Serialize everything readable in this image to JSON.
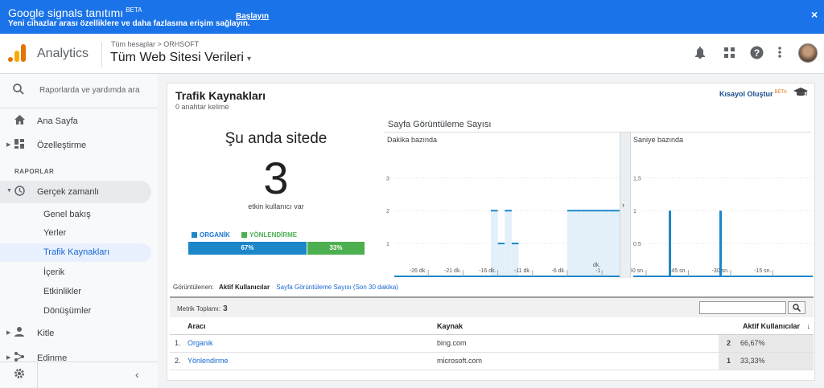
{
  "banner": {
    "title": "Google signals tanıtımı",
    "beta": "BETA",
    "subtitle": "Yeni cihazlar arası özelliklere ve daha fazlasına erişim sağlayın.",
    "link": "Başlayın",
    "close": "×"
  },
  "header": {
    "app": "Analytics",
    "breadcrumb": "Tüm hesaplar > ORHSOFT",
    "view": "Tüm Web Sitesi Verileri",
    "caret": "▾",
    "icons": [
      "bell-icon",
      "apps-grid-icon",
      "help-icon",
      "more-vert-icon",
      "avatar"
    ]
  },
  "sidebar": {
    "search": "Raporlarda ve yardımda ara",
    "top": [
      {
        "label": "Ana Sayfa",
        "icon": "home-icon"
      },
      {
        "label": "Özelleştirme",
        "icon": "dashboard-icon"
      }
    ],
    "section": "RAPORLAR",
    "realtime": "Gerçek zamanlı",
    "sub": [
      "Genel bakış",
      "Yerler",
      "Trafik Kaynakları",
      "İçerik",
      "Etkinlikler",
      "Dönüşümler"
    ],
    "more": [
      "Kitle",
      "Edinme"
    ]
  },
  "card": {
    "title": "Trafik Kaynakları",
    "subtitle": "0 anahtar kelime",
    "shortcut": "Kısayol Oluştur",
    "shortcut_beta": "BETA"
  },
  "now": {
    "title": "Şu anda sitede",
    "count": "3",
    "sub": "etkin kullanıcı var"
  },
  "split": {
    "items": [
      {
        "label": "ORGANİK",
        "color": "#1b87c9",
        "pct": "67%",
        "value": 0.67
      },
      {
        "label": "YÖNLENDİRME",
        "color": "#4caf50",
        "pct": "33%",
        "value": 0.33
      }
    ]
  },
  "pageviews": {
    "title": "Sayfa Görüntüleme Sayısı",
    "minute_label": "Dakika bazında",
    "second_label": "Saniye bazında"
  },
  "chart_data": [
    {
      "type": "bar",
      "title": "Dakika bazında",
      "ylim": [
        0,
        3.4
      ],
      "yticks": [
        "1",
        "2",
        "3"
      ],
      "xticks": [
        "-26 dk.",
        "-21 dk.",
        "-16 dk.",
        "-11 dk.",
        "-6 dk.",
        "-1 dk."
      ],
      "values": [
        2,
        1,
        2,
        1,
        2,
        2,
        2,
        2,
        2,
        2,
        2,
        2
      ],
      "minutes": [
        -17,
        -16,
        -15,
        -14,
        -6,
        -5,
        -4,
        -3,
        -2,
        -1,
        0,
        1
      ]
    },
    {
      "type": "bar",
      "title": "Saniye bazında",
      "ylim": [
        0,
        1.7
      ],
      "yticks": [
        "0.5",
        "1",
        "1,5"
      ],
      "xticks": [
        "-60 sn.",
        "-45 sn.",
        "-30 sn.",
        "-15 sn."
      ],
      "values": [
        1,
        1
      ],
      "seconds": [
        -52,
        -34
      ]
    }
  ],
  "tabs": {
    "label": "Görüntülenen:",
    "active": "Aktif Kullanıcılar",
    "other": "Sayfa Görüntüleme Sayısı (Son 30 dakika)"
  },
  "metric": {
    "label": "Metrik Toplamı:",
    "value": "3"
  },
  "table": {
    "columns": [
      "Aracı",
      "Kaynak",
      "Aktif Kullanıcılar"
    ],
    "rows": [
      {
        "idx": "1.",
        "medium": "Organik",
        "source": "bing.com",
        "users": "2",
        "pct": "66,67%"
      },
      {
        "idx": "2.",
        "medium": "Yönlendirme",
        "source": "microsoft.com",
        "users": "1",
        "pct": "33,33%"
      }
    ]
  }
}
